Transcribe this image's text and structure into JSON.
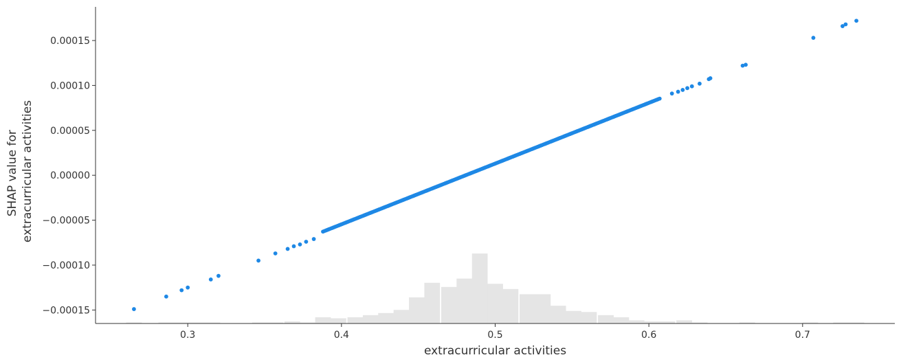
{
  "chart_data": {
    "type": "scatter",
    "title": "",
    "xlabel": "extracurricular activities",
    "ylabel_lines": [
      "SHAP value for",
      "extracurricular activities"
    ],
    "xlim": [
      0.24,
      0.76
    ],
    "ylim": [
      -0.000165,
      0.000189
    ],
    "x_ticks": [
      {
        "value": 0.3,
        "label": "0.3"
      },
      {
        "value": 0.4,
        "label": "0.4"
      },
      {
        "value": 0.5,
        "label": "0.5"
      },
      {
        "value": 0.6,
        "label": "0.6"
      },
      {
        "value": 0.7,
        "label": "0.7"
      }
    ],
    "y_ticks": [
      {
        "value": 0.00015,
        "label": "0.00015"
      },
      {
        "value": 0.0001,
        "label": "0.00010"
      },
      {
        "value": 5e-05,
        "label": "0.00005"
      },
      {
        "value": 0.0,
        "label": "0.00000"
      },
      {
        "value": -5e-05,
        "label": "−0.00005"
      },
      {
        "value": -0.0001,
        "label": "−0.00010"
      },
      {
        "value": -0.00015,
        "label": "−0.00015"
      }
    ],
    "grid": false,
    "colors": {
      "points": "#1e88e5",
      "histogram": "#e5e5e5",
      "axis": "#333333"
    },
    "relationship": {
      "slope": 0.000676,
      "intercept": -0.000325
    },
    "outlier_points": [
      {
        "x": 0.265,
        "y": -0.000149
      },
      {
        "x": 0.286,
        "y": -0.000135
      },
      {
        "x": 0.296,
        "y": -0.000128
      },
      {
        "x": 0.3,
        "y": -0.000125
      },
      {
        "x": 0.315,
        "y": -0.000116
      },
      {
        "x": 0.32,
        "y": -0.000112
      },
      {
        "x": 0.346,
        "y": -9.5e-05
      },
      {
        "x": 0.357,
        "y": -8.7e-05
      },
      {
        "x": 0.365,
        "y": -8.2e-05
      },
      {
        "x": 0.369,
        "y": -7.9e-05
      },
      {
        "x": 0.373,
        "y": -7.7e-05
      },
      {
        "x": 0.377,
        "y": -7.4e-05
      },
      {
        "x": 0.382,
        "y": -7.1e-05
      },
      {
        "x": 0.615,
        "y": 9.1e-05
      },
      {
        "x": 0.619,
        "y": 9.3e-05
      },
      {
        "x": 0.622,
        "y": 9.5e-05
      },
      {
        "x": 0.625,
        "y": 9.7e-05
      },
      {
        "x": 0.628,
        "y": 9.9e-05
      },
      {
        "x": 0.633,
        "y": 0.000102
      },
      {
        "x": 0.639,
        "y": 0.000107
      },
      {
        "x": 0.64,
        "y": 0.000108
      },
      {
        "x": 0.661,
        "y": 0.000122
      },
      {
        "x": 0.663,
        "y": 0.000123
      },
      {
        "x": 0.707,
        "y": 0.000153
      },
      {
        "x": 0.726,
        "y": 0.000166
      },
      {
        "x": 0.728,
        "y": 0.000168
      },
      {
        "x": 0.735,
        "y": 0.000172
      }
    ],
    "dense_range": {
      "x_start": 0.388,
      "x_end": 0.607,
      "point_count": 230
    },
    "histogram": {
      "bin_width": 0.0102,
      "bins": [
        {
          "x": 0.265,
          "count": 1
        },
        {
          "x": 0.286,
          "count": 1
        },
        {
          "x": 0.296,
          "count": 1
        },
        {
          "x": 0.306,
          "count": 1
        },
        {
          "x": 0.316,
          "count": 1
        },
        {
          "x": 0.347,
          "count": 1
        },
        {
          "x": 0.357,
          "count": 1
        },
        {
          "x": 0.368,
          "count": 2
        },
        {
          "x": 0.378,
          "count": 1
        },
        {
          "x": 0.388,
          "count": 6
        },
        {
          "x": 0.398,
          "count": 5
        },
        {
          "x": 0.409,
          "count": 6
        },
        {
          "x": 0.419,
          "count": 8
        },
        {
          "x": 0.429,
          "count": 10
        },
        {
          "x": 0.439,
          "count": 13
        },
        {
          "x": 0.449,
          "count": 25
        },
        {
          "x": 0.459,
          "count": 39
        },
        {
          "x": 0.47,
          "count": 35
        },
        {
          "x": 0.48,
          "count": 43
        },
        {
          "x": 0.49,
          "count": 67
        },
        {
          "x": 0.5,
          "count": 38
        },
        {
          "x": 0.51,
          "count": 33
        },
        {
          "x": 0.521,
          "count": 28
        },
        {
          "x": 0.531,
          "count": 28
        },
        {
          "x": 0.541,
          "count": 17
        },
        {
          "x": 0.551,
          "count": 12
        },
        {
          "x": 0.561,
          "count": 11
        },
        {
          "x": 0.572,
          "count": 8
        },
        {
          "x": 0.582,
          "count": 6
        },
        {
          "x": 0.592,
          "count": 3
        },
        {
          "x": 0.602,
          "count": 2
        },
        {
          "x": 0.612,
          "count": 2
        },
        {
          "x": 0.623,
          "count": 3
        },
        {
          "x": 0.633,
          "count": 1
        },
        {
          "x": 0.664,
          "count": 1
        },
        {
          "x": 0.705,
          "count": 1
        },
        {
          "x": 0.725,
          "count": 1
        },
        {
          "x": 0.735,
          "count": 1
        }
      ],
      "max_fraction_of_plot": 0.22
    }
  }
}
